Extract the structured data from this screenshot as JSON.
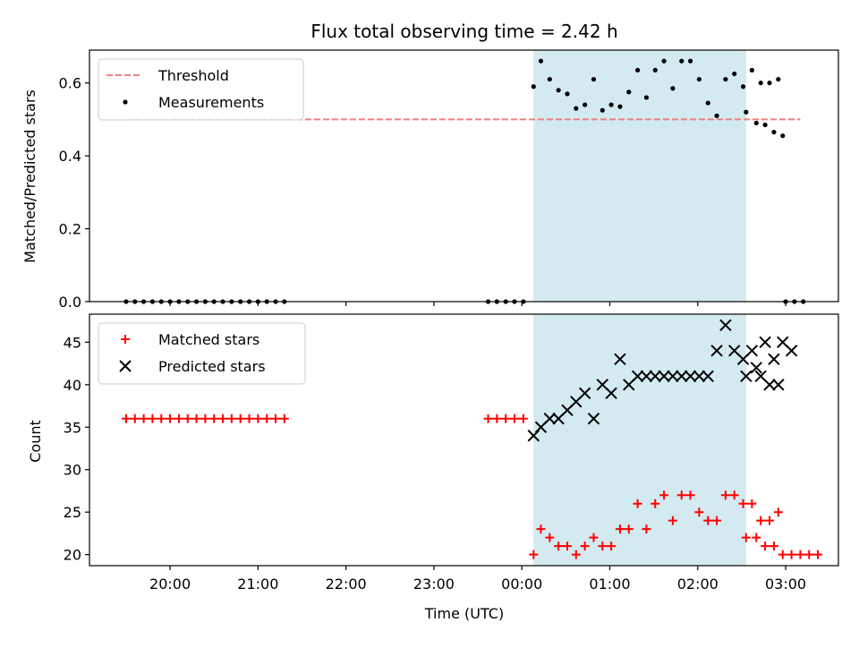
{
  "chart_data": [
    {
      "type": "scatter",
      "title": "Flux total observing time = 2.42 h",
      "xlabel": "",
      "ylabel": "Matched/Predicted stars",
      "ylim": [
        0,
        0.69
      ],
      "yticks": [
        "0.0",
        "0.2",
        "0.4",
        "0.6"
      ],
      "legend_position": "top-left",
      "shaded_interval": [
        "00:08",
        "02:33"
      ],
      "shade_color": "#d3eaf0",
      "threshold": {
        "name": "Threshold",
        "value": 0.5,
        "x_range": [
          "19:30",
          "03:10"
        ],
        "color": "#f08080"
      },
      "series": [
        {
          "name": "Measurements",
          "color": "#000000",
          "marker": "dot",
          "points": [
            [
              "19:30",
              0
            ],
            [
              "19:36",
              0
            ],
            [
              "19:42",
              0
            ],
            [
              "19:48",
              0
            ],
            [
              "19:54",
              0
            ],
            [
              "20:00",
              0
            ],
            [
              "20:06",
              0
            ],
            [
              "20:12",
              0
            ],
            [
              "20:18",
              0
            ],
            [
              "20:24",
              0
            ],
            [
              "20:30",
              0
            ],
            [
              "20:36",
              0
            ],
            [
              "20:42",
              0
            ],
            [
              "20:48",
              0
            ],
            [
              "20:54",
              0
            ],
            [
              "21:00",
              0
            ],
            [
              "21:06",
              0
            ],
            [
              "21:12",
              0
            ],
            [
              "21:18",
              0
            ],
            [
              "23:37",
              0
            ],
            [
              "23:43",
              0
            ],
            [
              "23:49",
              0
            ],
            [
              "23:55",
              0
            ],
            [
              "00:01",
              0
            ],
            [
              "00:08",
              0.59
            ],
            [
              "00:13",
              0.66
            ],
            [
              "00:19",
              0.61
            ],
            [
              "00:25",
              0.58
            ],
            [
              "00:31",
              0.57
            ],
            [
              "00:37",
              0.53
            ],
            [
              "00:43",
              0.54
            ],
            [
              "00:49",
              0.61
            ],
            [
              "00:55",
              0.525
            ],
            [
              "01:01",
              0.54
            ],
            [
              "01:07",
              0.535
            ],
            [
              "01:13",
              0.575
            ],
            [
              "01:19",
              0.635
            ],
            [
              "01:25",
              0.56
            ],
            [
              "01:31",
              0.635
            ],
            [
              "01:37",
              0.66
            ],
            [
              "01:43",
              0.585
            ],
            [
              "01:49",
              0.66
            ],
            [
              "01:55",
              0.66
            ],
            [
              "02:01",
              0.61
            ],
            [
              "02:07",
              0.545
            ],
            [
              "02:13",
              0.51
            ],
            [
              "02:19",
              0.61
            ],
            [
              "02:25",
              0.625
            ],
            [
              "02:31",
              0.59
            ],
            [
              "02:37",
              0.635
            ],
            [
              "02:43",
              0.6
            ],
            [
              "02:49",
              0.6
            ],
            [
              "02:55",
              0.61
            ],
            [
              "02:33",
              0.52
            ],
            [
              "02:40",
              0.49
            ],
            [
              "02:46",
              0.485
            ],
            [
              "02:52",
              0.465
            ],
            [
              "02:58",
              0.455
            ],
            [
              "03:00",
              0
            ],
            [
              "03:06",
              0
            ],
            [
              "03:12",
              0
            ]
          ]
        }
      ]
    },
    {
      "type": "scatter",
      "title": "",
      "xlabel": "Time (UTC)",
      "ylabel": "Count",
      "ylim": [
        18.7,
        48.3
      ],
      "yticks": [
        "20",
        "25",
        "30",
        "35",
        "40",
        "45"
      ],
      "xticks": [
        "20:00",
        "21:00",
        "22:00",
        "23:00",
        "00:00",
        "01:00",
        "02:00",
        "03:00"
      ],
      "legend_position": "top-left",
      "shaded_interval": [
        "00:08",
        "02:33"
      ],
      "shade_color": "#d3eaf0",
      "series": [
        {
          "name": "Matched stars",
          "color": "#ff0000",
          "marker": "plus",
          "points": [
            [
              "19:30",
              36
            ],
            [
              "19:36",
              36
            ],
            [
              "19:42",
              36
            ],
            [
              "19:48",
              36
            ],
            [
              "19:54",
              36
            ],
            [
              "20:00",
              36
            ],
            [
              "20:06",
              36
            ],
            [
              "20:12",
              36
            ],
            [
              "20:18",
              36
            ],
            [
              "20:24",
              36
            ],
            [
              "20:30",
              36
            ],
            [
              "20:36",
              36
            ],
            [
              "20:42",
              36
            ],
            [
              "20:48",
              36
            ],
            [
              "20:54",
              36
            ],
            [
              "21:00",
              36
            ],
            [
              "21:06",
              36
            ],
            [
              "21:12",
              36
            ],
            [
              "21:18",
              36
            ],
            [
              "23:37",
              36
            ],
            [
              "23:43",
              36
            ],
            [
              "23:49",
              36
            ],
            [
              "23:55",
              36
            ],
            [
              "00:01",
              36
            ],
            [
              "00:08",
              20
            ],
            [
              "00:13",
              23
            ],
            [
              "00:19",
              22
            ],
            [
              "00:25",
              21
            ],
            [
              "00:31",
              21
            ],
            [
              "00:37",
              20
            ],
            [
              "00:43",
              21
            ],
            [
              "00:49",
              22
            ],
            [
              "00:55",
              21
            ],
            [
              "01:01",
              21
            ],
            [
              "01:07",
              23
            ],
            [
              "01:13",
              23
            ],
            [
              "01:19",
              26
            ],
            [
              "01:25",
              23
            ],
            [
              "01:31",
              26
            ],
            [
              "01:37",
              27
            ],
            [
              "01:43",
              24
            ],
            [
              "01:49",
              27
            ],
            [
              "01:55",
              27
            ],
            [
              "02:01",
              25
            ],
            [
              "02:07",
              24
            ],
            [
              "02:13",
              24
            ],
            [
              "02:19",
              27
            ],
            [
              "02:25",
              27
            ],
            [
              "02:31",
              26
            ],
            [
              "02:37",
              26
            ],
            [
              "02:43",
              24
            ],
            [
              "02:49",
              24
            ],
            [
              "02:55",
              25
            ],
            [
              "02:33",
              22
            ],
            [
              "02:40",
              22
            ],
            [
              "02:46",
              21
            ],
            [
              "02:52",
              21
            ],
            [
              "02:58",
              20
            ],
            [
              "03:04",
              20
            ],
            [
              "03:10",
              20
            ],
            [
              "03:16",
              20
            ],
            [
              "03:22",
              20
            ]
          ]
        },
        {
          "name": "Predicted stars",
          "color": "#000000",
          "marker": "x",
          "points": [
            [
              "00:08",
              34
            ],
            [
              "00:13",
              35
            ],
            [
              "00:19",
              36
            ],
            [
              "00:25",
              36
            ],
            [
              "00:31",
              37
            ],
            [
              "00:37",
              38
            ],
            [
              "00:43",
              39
            ],
            [
              "00:49",
              36
            ],
            [
              "00:55",
              40
            ],
            [
              "01:01",
              39
            ],
            [
              "01:07",
              43
            ],
            [
              "01:13",
              40
            ],
            [
              "01:19",
              41
            ],
            [
              "01:25",
              41
            ],
            [
              "01:31",
              41
            ],
            [
              "01:37",
              41
            ],
            [
              "01:43",
              41
            ],
            [
              "01:49",
              41
            ],
            [
              "01:55",
              41
            ],
            [
              "02:01",
              41
            ],
            [
              "02:07",
              41
            ],
            [
              "02:13",
              44
            ],
            [
              "02:19",
              47
            ],
            [
              "02:25",
              44
            ],
            [
              "02:31",
              43
            ],
            [
              "02:37",
              44
            ],
            [
              "02:43",
              41
            ],
            [
              "02:49",
              40
            ],
            [
              "02:55",
              40
            ],
            [
              "02:33",
              41
            ],
            [
              "02:40",
              42
            ],
            [
              "02:46",
              45
            ],
            [
              "02:52",
              43
            ],
            [
              "02:58",
              45
            ],
            [
              "03:04",
              44
            ]
          ]
        }
      ]
    }
  ]
}
